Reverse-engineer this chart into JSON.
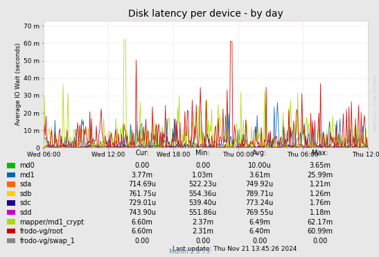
{
  "title": "Disk latency per device - by day",
  "ylabel": "Average IO Wait (seconds)",
  "watermark": "RRDTOOL / TOBI OETIKER",
  "footer": "Munin 2.0.73",
  "last_update": "Last update: Thu Nov 21 13:45:26 2024",
  "bg_color": "#e8e8e8",
  "plot_bg_color": "#ffffff",
  "grid_color_v": "#aaaaff",
  "grid_color_h": "#ffaaaa",
  "ytick_labels": [
    "0",
    "10 m",
    "20 m",
    "30 m",
    "40 m",
    "50 m",
    "60 m",
    "70 m"
  ],
  "ytick_vals": [
    0,
    10,
    20,
    30,
    40,
    50,
    60,
    70
  ],
  "xtick_labels": [
    "Wed 06:00",
    "Wed 12:00",
    "Wed 18:00",
    "Thu 00:00",
    "Thu 06:00",
    "Thu 12:00"
  ],
  "ylim": [
    0,
    73
  ],
  "n_points": 400,
  "series": [
    {
      "name": "md0",
      "color": "#00bb00"
    },
    {
      "name": "md1",
      "color": "#0066bb"
    },
    {
      "name": "sda",
      "color": "#ff6600"
    },
    {
      "name": "sdb",
      "color": "#ffcc00"
    },
    {
      "name": "sdc",
      "color": "#220088"
    },
    {
      "name": "sdd",
      "color": "#cc00cc"
    },
    {
      "name": "mapper/md1_crypt",
      "color": "#aadd00"
    },
    {
      "name": "frodo-vg/root",
      "color": "#cc0000"
    },
    {
      "name": "frodo-vg/swap_1",
      "color": "#888888"
    }
  ],
  "legend_data": [
    {
      "name": "md0",
      "color": "#00bb00",
      "cur": "0.00",
      "min": "0.00",
      "avg": "10.00u",
      "max": "3.65m"
    },
    {
      "name": "md1",
      "color": "#0066bb",
      "cur": "3.77m",
      "min": "1.03m",
      "avg": "3.61m",
      "max": "25.99m"
    },
    {
      "name": "sda",
      "color": "#ff6600",
      "cur": "714.69u",
      "min": "522.23u",
      "avg": "749.92u",
      "max": "1.21m"
    },
    {
      "name": "sdb",
      "color": "#ffcc00",
      "cur": "761.75u",
      "min": "554.36u",
      "avg": "789.71u",
      "max": "1.26m"
    },
    {
      "name": "sdc",
      "color": "#220088",
      "cur": "729.01u",
      "min": "539.40u",
      "avg": "773.24u",
      "max": "1.76m"
    },
    {
      "name": "sdd",
      "color": "#cc00cc",
      "cur": "743.90u",
      "min": "551.86u",
      "avg": "769.55u",
      "max": "1.18m"
    },
    {
      "name": "mapper/md1_crypt",
      "color": "#aadd00",
      "cur": "6.60m",
      "min": "2.37m",
      "avg": "6.49m",
      "max": "62.17m"
    },
    {
      "name": "frodo-vg/root",
      "color": "#cc0000",
      "cur": "6.60m",
      "min": "2.31m",
      "avg": "6.40m",
      "max": "60.99m"
    },
    {
      "name": "frodo-vg/swap_1",
      "color": "#888888",
      "cur": "0.00",
      "min": "0.00",
      "avg": "0.00",
      "max": "0.00"
    }
  ]
}
